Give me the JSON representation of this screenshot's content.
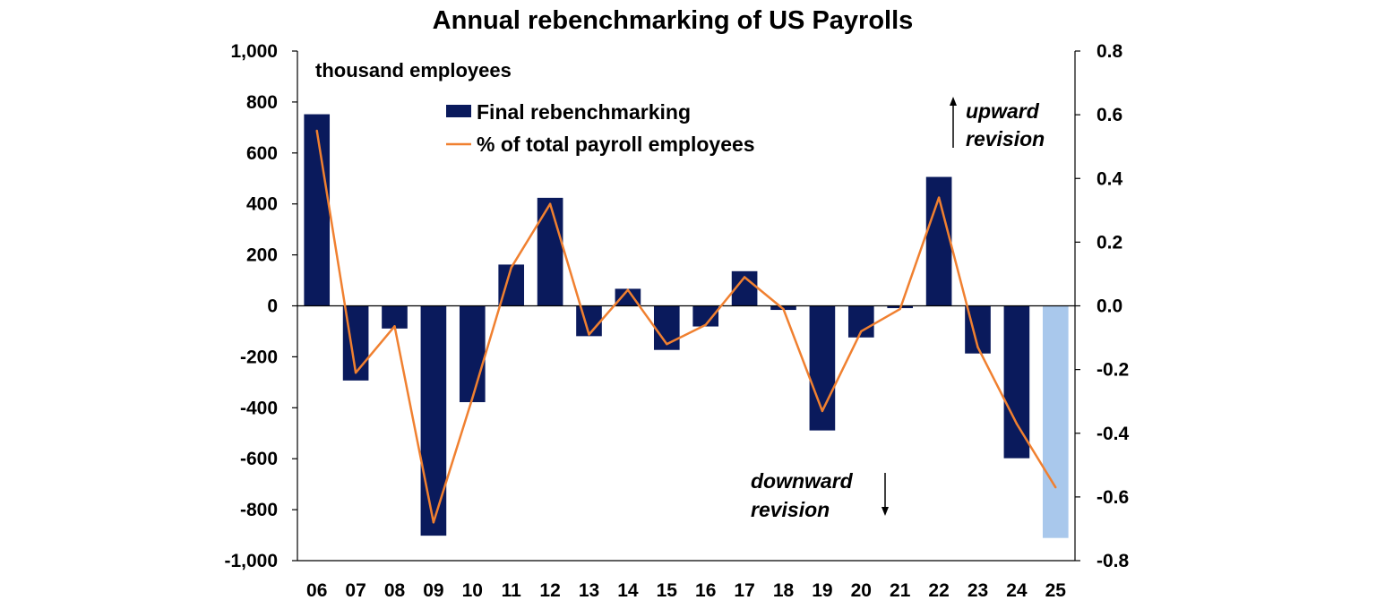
{
  "chart_data": {
    "type": "bar",
    "title": "Annual rebenchmarking of US Payrolls",
    "unit_label": "thousand employees",
    "categories": [
      "06",
      "07",
      "08",
      "09",
      "10",
      "11",
      "12",
      "13",
      "14",
      "15",
      "16",
      "17",
      "18",
      "19",
      "20",
      "21",
      "22",
      "23",
      "24",
      "25"
    ],
    "series": [
      {
        "name": "Final rebenchmarking",
        "type": "bar",
        "axis": "left",
        "color": "#0a1a5c",
        "values": [
          752,
          -293,
          -89,
          -902,
          -378,
          162,
          424,
          -119,
          67,
          -173,
          -81,
          136,
          -16,
          -489,
          -124,
          -9,
          506,
          -187,
          -598,
          -911
        ]
      },
      {
        "name": "% of total payroll employees",
        "type": "line",
        "axis": "right",
        "color": "#f08030",
        "values": [
          0.55,
          -0.21,
          -0.064,
          -0.68,
          -0.29,
          0.12,
          0.32,
          -0.09,
          0.05,
          -0.12,
          -0.06,
          0.09,
          -0.01,
          -0.33,
          -0.08,
          -0.01,
          0.34,
          -0.13,
          -0.37,
          -0.57
        ]
      }
    ],
    "estimate_bar_color": "#a9c8ec",
    "left_axis": {
      "ylim": [
        -1000,
        1000
      ],
      "ticks": [
        1000,
        800,
        600,
        400,
        200,
        0,
        -200,
        -400,
        -600,
        -800,
        -1000
      ],
      "tick_labels": [
        "1,000",
        "800",
        "600",
        "400",
        "200",
        "0",
        "-200",
        "-400",
        "-600",
        "-800",
        "-1,000"
      ]
    },
    "right_axis": {
      "ylim": [
        -0.8,
        0.8
      ],
      "ticks": [
        0.8,
        0.6,
        0.4,
        0.2,
        0.0,
        -0.2,
        -0.4,
        -0.6,
        -0.8
      ],
      "tick_labels": [
        "0.8",
        "0.6",
        "0.4",
        "0.2",
        "0.0",
        "-0.2",
        "-0.4",
        "-0.6",
        "-0.8"
      ]
    },
    "legend_position": "top-center",
    "grid": false,
    "annotations": {
      "upward_line1": "upward",
      "upward_line2": "revision",
      "downward_line1": "downward",
      "downward_line2": "revision"
    }
  }
}
